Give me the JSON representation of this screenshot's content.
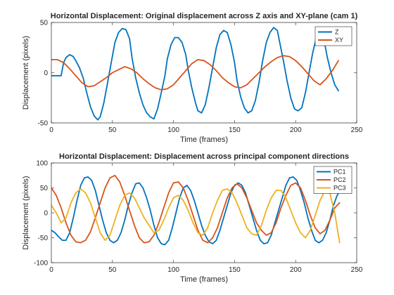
{
  "chart_data": [
    {
      "type": "line",
      "title": "Horizontal Displacement: Original displacement across Z axis and XY-plane (cam 1)",
      "xlabel": "Time (frames)",
      "ylabel": "Displacement (pixels)",
      "xlim": [
        0,
        250
      ],
      "ylim": [
        -50,
        50
      ],
      "xticks": [
        0,
        50,
        100,
        150,
        200,
        250
      ],
      "yticks": [
        -50,
        0,
        50
      ],
      "grid": false,
      "legend": "top-right",
      "series": [
        {
          "name": "Z",
          "color": "#0072BD",
          "x": [
            0,
            5,
            8,
            10,
            12,
            15,
            18,
            20,
            23,
            26,
            29,
            32,
            35,
            38,
            40,
            43,
            46,
            49,
            52,
            55,
            58,
            61,
            64,
            66,
            69,
            72,
            75,
            78,
            81,
            84,
            87,
            90,
            93,
            95,
            98,
            101,
            104,
            107,
            110,
            112,
            115,
            118,
            120,
            123,
            126,
            129,
            132,
            135,
            138,
            141,
            144,
            147,
            150,
            152,
            155,
            158,
            161,
            164,
            167,
            170,
            173,
            176,
            179,
            182,
            185,
            187,
            190,
            193,
            196,
            199,
            202,
            205,
            208,
            211,
            214,
            217,
            220,
            223,
            226,
            229,
            232,
            235
          ],
          "y": [
            -3,
            -3,
            -3,
            10,
            15,
            18,
            16,
            12,
            5,
            -5,
            -20,
            -34,
            -43,
            -47,
            -44,
            -30,
            -10,
            10,
            30,
            40,
            44,
            43,
            34,
            15,
            -5,
            -20,
            -32,
            -40,
            -44,
            -46,
            -36,
            -20,
            -3,
            14,
            28,
            35,
            35,
            30,
            18,
            3,
            -15,
            -30,
            -38,
            -40,
            -32,
            -15,
            5,
            25,
            38,
            42,
            40,
            28,
            10,
            -8,
            -24,
            -35,
            -40,
            -38,
            -28,
            -10,
            12,
            30,
            40,
            45,
            42,
            30,
            12,
            -8,
            -25,
            -36,
            -38,
            -35,
            -20,
            0,
            20,
            35,
            40,
            34,
            15,
            0,
            -12,
            -18
          ]
        },
        {
          "name": "XY",
          "color": "#D95319",
          "x": [
            0,
            5,
            10,
            15,
            20,
            25,
            30,
            35,
            40,
            45,
            50,
            55,
            60,
            65,
            70,
            75,
            80,
            85,
            90,
            95,
            100,
            105,
            110,
            115,
            120,
            125,
            130,
            135,
            140,
            145,
            150,
            155,
            160,
            165,
            170,
            175,
            180,
            185,
            190,
            195,
            200,
            205,
            210,
            215,
            220,
            225,
            230,
            235
          ],
          "y": [
            13,
            13,
            10,
            4,
            -3,
            -10,
            -14,
            -13,
            -9,
            -5,
            0,
            3,
            6,
            4,
            0,
            -6,
            -11,
            -15,
            -17,
            -16,
            -12,
            -5,
            2,
            9,
            13,
            12,
            8,
            2,
            -5,
            -10,
            -14,
            -15,
            -12,
            -6,
            0,
            6,
            11,
            15,
            17,
            16,
            12,
            6,
            -1,
            -8,
            -12,
            -6,
            2,
            12
          ]
        }
      ]
    },
    {
      "type": "line",
      "title": "Horizontal Displacement: Displacement across principal component directions",
      "xlabel": "Time (frames)",
      "ylabel": "Displacement (pixels)",
      "xlim": [
        0,
        250
      ],
      "ylim": [
        -100,
        100
      ],
      "xticks": [
        0,
        50,
        100,
        150,
        200,
        250
      ],
      "yticks": [
        -100,
        -50,
        0,
        50,
        100
      ],
      "grid": false,
      "legend": "top-right",
      "series": [
        {
          "name": "PC1",
          "color": "#0072BD",
          "x": [
            0,
            3,
            6,
            9,
            12,
            15,
            18,
            21,
            24,
            27,
            30,
            33,
            36,
            39,
            42,
            45,
            48,
            51,
            54,
            57,
            60,
            63,
            66,
            69,
            72,
            75,
            78,
            81,
            84,
            87,
            90,
            93,
            96,
            99,
            102,
            105,
            108,
            111,
            114,
            117,
            120,
            123,
            126,
            129,
            132,
            135,
            138,
            141,
            144,
            147,
            150,
            153,
            156,
            159,
            162,
            165,
            168,
            171,
            174,
            177,
            180,
            183,
            186,
            189,
            192,
            195,
            198,
            201,
            204,
            207,
            210,
            213,
            216,
            219,
            222,
            225,
            228,
            231,
            234,
            236
          ],
          "y": [
            -35,
            -40,
            -48,
            -55,
            -55,
            -40,
            -10,
            25,
            55,
            70,
            72,
            65,
            45,
            15,
            -15,
            -40,
            -55,
            -60,
            -55,
            -40,
            -15,
            15,
            40,
            58,
            60,
            50,
            30,
            5,
            -25,
            -50,
            -62,
            -64,
            -55,
            -30,
            0,
            30,
            50,
            55,
            45,
            25,
            0,
            -25,
            -45,
            -58,
            -62,
            -55,
            -35,
            -10,
            15,
            40,
            55,
            60,
            55,
            40,
            15,
            -10,
            -35,
            -55,
            -62,
            -60,
            -45,
            -20,
            5,
            30,
            55,
            70,
            72,
            65,
            45,
            20,
            -10,
            -35,
            -55,
            -60,
            -55,
            -40,
            -15,
            15,
            35,
            42
          ]
        },
        {
          "name": "PC2",
          "color": "#D95319",
          "x": [
            0,
            4,
            8,
            12,
            16,
            20,
            24,
            28,
            32,
            36,
            40,
            44,
            48,
            52,
            56,
            60,
            64,
            68,
            72,
            76,
            80,
            84,
            88,
            92,
            96,
            100,
            104,
            108,
            112,
            116,
            120,
            124,
            128,
            132,
            136,
            140,
            144,
            148,
            152,
            156,
            160,
            164,
            168,
            172,
            176,
            180,
            184,
            188,
            192,
            196,
            200,
            204,
            208,
            212,
            216,
            220,
            224,
            228,
            232,
            236
          ],
          "y": [
            50,
            35,
            10,
            -20,
            -45,
            -58,
            -60,
            -55,
            -38,
            -10,
            20,
            50,
            70,
            75,
            62,
            35,
            5,
            -25,
            -50,
            -60,
            -58,
            -45,
            -20,
            10,
            40,
            60,
            62,
            50,
            25,
            -5,
            -35,
            -55,
            -60,
            -50,
            -30,
            0,
            30,
            50,
            58,
            50,
            30,
            5,
            -20,
            -35,
            -45,
            -40,
            -20,
            10,
            35,
            55,
            60,
            50,
            25,
            -5,
            -30,
            -42,
            -35,
            -15,
            10,
            20
          ]
        },
        {
          "name": "PC3",
          "color": "#EDB120",
          "x": [
            0,
            4,
            8,
            12,
            16,
            20,
            24,
            28,
            32,
            36,
            40,
            44,
            48,
            52,
            56,
            60,
            64,
            68,
            72,
            76,
            80,
            84,
            88,
            92,
            96,
            100,
            104,
            108,
            112,
            116,
            120,
            124,
            128,
            132,
            136,
            140,
            144,
            148,
            152,
            156,
            160,
            164,
            168,
            172,
            176,
            180,
            184,
            188,
            192,
            196,
            200,
            204,
            208,
            212,
            216,
            220,
            224,
            228,
            232,
            236
          ],
          "y": [
            15,
            0,
            -20,
            -10,
            20,
            40,
            48,
            40,
            20,
            -10,
            -40,
            -55,
            -45,
            -15,
            15,
            35,
            40,
            30,
            10,
            -10,
            -25,
            -40,
            -35,
            -15,
            10,
            30,
            35,
            25,
            5,
            -20,
            -40,
            -45,
            -30,
            0,
            25,
            45,
            48,
            40,
            20,
            -5,
            -30,
            -42,
            -45,
            -25,
            5,
            30,
            45,
            45,
            30,
            5,
            -20,
            -40,
            -50,
            -35,
            -5,
            25,
            45,
            40,
            0,
            -60
          ]
        }
      ]
    }
  ]
}
